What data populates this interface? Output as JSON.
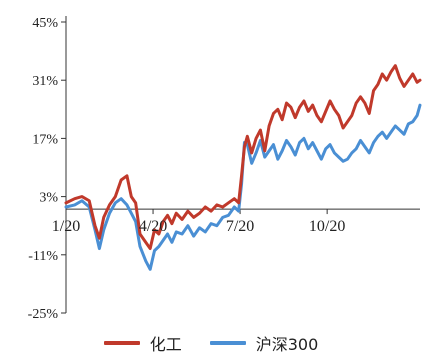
{
  "chart_data": {
    "type": "line",
    "title": "",
    "xlabel": "",
    "ylabel": "",
    "ylim": [
      -25,
      45
    ],
    "yticks": [
      45,
      31,
      17,
      3,
      -11,
      -25
    ],
    "ytick_labels": [
      "45%",
      "31%",
      "17%",
      "3%",
      "-11%",
      "-25%"
    ],
    "xticks": [
      0,
      3,
      6,
      9
    ],
    "xtick_labels": [
      "1/20",
      "4/20",
      "7/20",
      "10/20"
    ],
    "xlim": [
      0,
      12.2
    ],
    "grid": false,
    "legend_position": "bottom",
    "series": [
      {
        "name": "化工",
        "color": "#c0392b",
        "x": [
          0.0,
          0.3,
          0.55,
          0.8,
          1.0,
          1.15,
          1.3,
          1.5,
          1.7,
          1.9,
          2.1,
          2.25,
          2.4,
          2.55,
          2.75,
          2.9,
          3.05,
          3.2,
          3.35,
          3.5,
          3.65,
          3.8,
          4.0,
          4.2,
          4.4,
          4.6,
          4.8,
          5.0,
          5.2,
          5.4,
          5.6,
          5.8,
          5.95,
          6.05,
          6.15,
          6.25,
          6.4,
          6.55,
          6.7,
          6.85,
          7.0,
          7.15,
          7.3,
          7.45,
          7.6,
          7.75,
          7.9,
          8.05,
          8.2,
          8.35,
          8.5,
          8.65,
          8.8,
          8.95,
          9.1,
          9.25,
          9.4,
          9.55,
          9.7,
          9.85,
          10.0,
          10.15,
          10.3,
          10.45,
          10.6,
          10.75,
          10.9,
          11.05,
          11.2,
          11.35,
          11.5,
          11.65,
          11.8,
          11.95,
          12.1,
          12.2
        ],
        "values": [
          1.5,
          2.5,
          3.0,
          2.0,
          -4.0,
          -7.0,
          -2.0,
          1.0,
          3.0,
          7.0,
          8.0,
          3.0,
          1.5,
          -6.0,
          -8.0,
          -9.5,
          -5.0,
          -6.0,
          -3.0,
          -1.5,
          -3.5,
          -1.0,
          -2.5,
          -0.5,
          -2.0,
          -1.0,
          0.5,
          -0.5,
          1.0,
          0.5,
          1.5,
          2.5,
          1.5,
          8.0,
          15.0,
          17.5,
          13.5,
          17.0,
          19.0,
          14.0,
          20.0,
          23.0,
          24.0,
          21.5,
          25.5,
          24.5,
          22.0,
          24.5,
          26.0,
          23.5,
          25.0,
          22.5,
          21.0,
          23.5,
          26.0,
          24.0,
          22.5,
          19.5,
          21.0,
          22.5,
          25.5,
          27.0,
          25.5,
          23.0,
          28.5,
          30.0,
          32.5,
          31.0,
          33.0,
          34.5,
          31.5,
          29.5,
          31.0,
          32.5,
          30.5,
          31.0
        ]
      },
      {
        "name": "沪深300",
        "color": "#4a8fd4",
        "x": [
          0.0,
          0.3,
          0.55,
          0.8,
          1.0,
          1.15,
          1.3,
          1.5,
          1.7,
          1.9,
          2.1,
          2.25,
          2.4,
          2.55,
          2.75,
          2.9,
          3.05,
          3.2,
          3.35,
          3.5,
          3.65,
          3.8,
          4.0,
          4.2,
          4.4,
          4.6,
          4.8,
          5.0,
          5.2,
          5.4,
          5.6,
          5.8,
          5.95,
          6.05,
          6.15,
          6.25,
          6.4,
          6.55,
          6.7,
          6.85,
          7.0,
          7.15,
          7.3,
          7.45,
          7.6,
          7.75,
          7.9,
          8.05,
          8.2,
          8.35,
          8.5,
          8.65,
          8.8,
          8.95,
          9.1,
          9.25,
          9.4,
          9.55,
          9.7,
          9.85,
          10.0,
          10.15,
          10.3,
          10.45,
          10.6,
          10.75,
          10.9,
          11.05,
          11.2,
          11.35,
          11.5,
          11.65,
          11.8,
          11.95,
          12.1,
          12.2
        ],
        "values": [
          0.5,
          1.0,
          2.0,
          0.5,
          -5.0,
          -9.5,
          -5.0,
          -1.0,
          1.5,
          2.5,
          1.0,
          -1.0,
          -3.0,
          -9.0,
          -12.5,
          -14.5,
          -10.0,
          -9.0,
          -7.5,
          -6.0,
          -8.0,
          -5.5,
          -6.0,
          -4.0,
          -6.5,
          -4.5,
          -5.5,
          -3.5,
          -4.0,
          -2.0,
          -1.5,
          0.5,
          -0.5,
          6.0,
          16.0,
          15.5,
          11.0,
          13.5,
          16.5,
          12.5,
          14.0,
          15.5,
          12.0,
          14.0,
          16.5,
          15.0,
          13.0,
          16.0,
          17.0,
          14.5,
          16.0,
          14.0,
          12.0,
          14.5,
          15.5,
          13.5,
          12.5,
          11.5,
          12.0,
          13.5,
          14.5,
          16.5,
          15.0,
          13.5,
          16.0,
          17.5,
          18.5,
          17.0,
          18.5,
          20.0,
          19.0,
          18.0,
          20.5,
          21.0,
          22.5,
          25.0
        ]
      }
    ]
  }
}
